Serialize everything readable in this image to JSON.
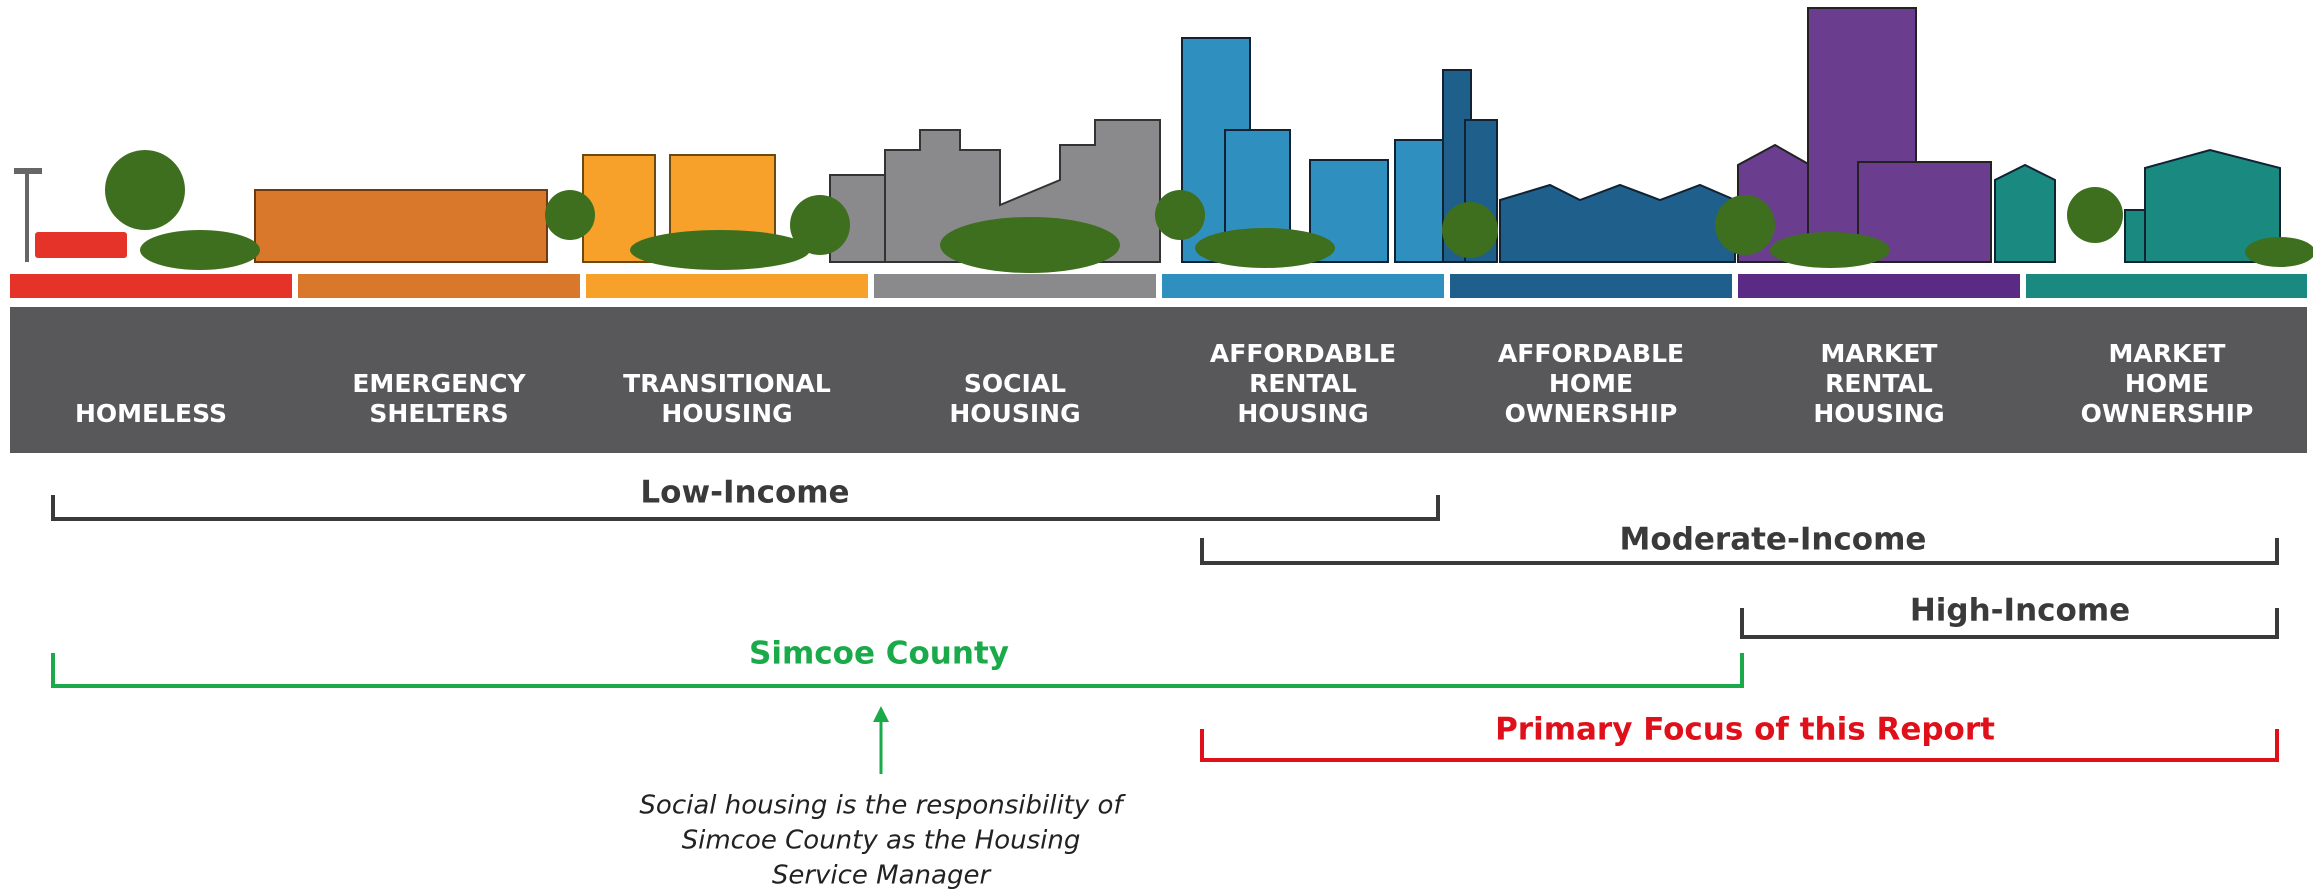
{
  "categories": [
    {
      "lines": [
        "HOMELESS"
      ]
    },
    {
      "lines": [
        "EMERGENCY",
        "SHELTERS"
      ]
    },
    {
      "lines": [
        "TRANSITIONAL",
        "HOUSING"
      ]
    },
    {
      "lines": [
        "SOCIAL",
        "HOUSING"
      ]
    },
    {
      "lines": [
        "AFFORDABLE",
        "RENTAL",
        "HOUSING"
      ]
    },
    {
      "lines": [
        "AFFORDABLE",
        "HOME",
        "OWNERSHIP"
      ]
    },
    {
      "lines": [
        "MARKET",
        "RENTAL",
        "HOUSING"
      ]
    },
    {
      "lines": [
        "MARKET",
        "HOME",
        "OWNERSHIP"
      ]
    }
  ],
  "brackets": {
    "low_income": "Low-Income",
    "moderate_income": "Moderate-Income",
    "high_income": "High-Income",
    "simcoe_county": "Simcoe County",
    "primary_focus": "Primary Focus of this Report"
  },
  "note": {
    "lines": [
      "Social housing is the responsibility of",
      "Simcoe County as the Housing",
      "Service Manager"
    ]
  }
}
